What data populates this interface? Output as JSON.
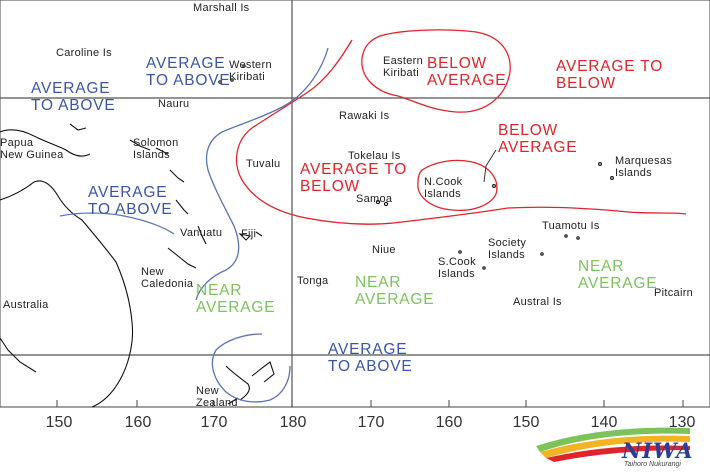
{
  "map": {
    "places": {
      "marshall": "Marshall Is",
      "caroline": "Caroline Is",
      "western_kiribati": "Western\nKiribati",
      "eastern_kiribati": "Eastern\nKiribati",
      "nauru": "Nauru",
      "rawaki": "Rawaki Is",
      "papua": "Papua\nNew Guinea",
      "solomon": "Solomon\nIslands",
      "tuvalu": "Tuvalu",
      "tokelau": "Tokelau Is",
      "samoa": "Samoa",
      "n_cook": "N.Cook\nIslands",
      "marquesas": "Marquesas\nIslands",
      "vanuatu": "Vanuatu",
      "fiji": "Fiji",
      "niue": "Niue",
      "society": "Society\nIslands",
      "tuamotu": "Tuamotu Is",
      "s_cook": "S.Cook\nIslands",
      "new_caledonia": "New\nCaledonia",
      "tonga": "Tonga",
      "austral": "Austral Is",
      "pitcairn": "Pitcairn",
      "australia": "Australia",
      "new_zealand": "New\nZealand"
    },
    "regions": {
      "avg_above_1": "AVERAGE\nTO ABOVE",
      "avg_above_2": "AVERAGE\nTO ABOVE",
      "avg_above_3": "AVERAGE\nTO ABOVE",
      "avg_above_4": "AVERAGE\nTO ABOVE",
      "below_avg_1": "BELOW\nAVERAGE",
      "avg_below_1": "AVERAGE TO\nBELOW",
      "below_avg_2": "BELOW\nAVERAGE",
      "avg_below_2": "AVERAGE TO\nBELOW",
      "near_avg_1": "NEAR\nAVERAGE",
      "near_avg_2": "NEAR\nAVERAGE",
      "near_avg_3": "NEAR\nAVERAGE"
    },
    "axis": {
      "ticks": [
        "150",
        "160",
        "170",
        "180",
        "170",
        "160",
        "150",
        "140",
        "130"
      ]
    },
    "logo": {
      "name": "NIWA",
      "tagline": "Taihoro Nukurangi"
    },
    "colors": {
      "blue": "#3b55a6",
      "red": "#e0242b",
      "green": "#7cc35a"
    }
  }
}
